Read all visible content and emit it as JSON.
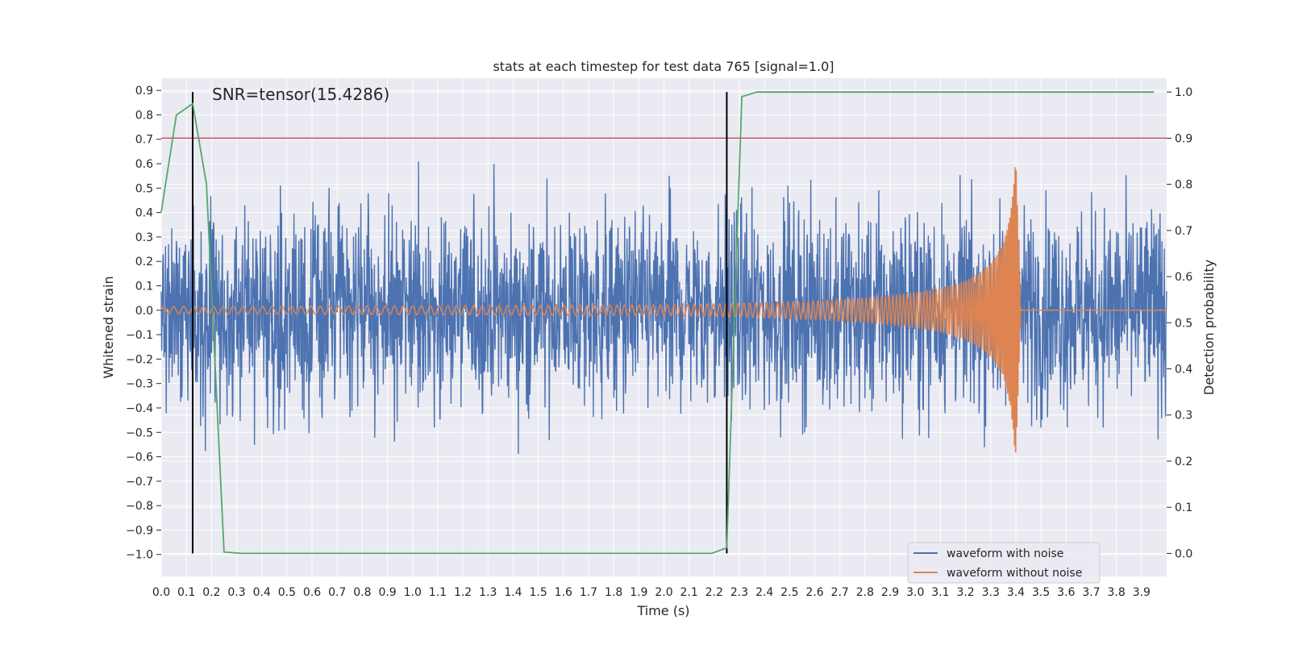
{
  "chart_data": {
    "type": "line",
    "title": "stats at each timestep for test data 765 [signal=1.0]",
    "xlabel": "Time (s)",
    "ylabel": "Whitened strain",
    "y2label": "Detection probability",
    "xlim": [
      0.0,
      4.0
    ],
    "ylim": [
      -1.09,
      0.95
    ],
    "y2lim": [
      -0.05,
      1.03
    ],
    "grid": true,
    "legend_position": "bottom-right",
    "x_ticks": [
      "0.0",
      "0.1",
      "0.2",
      "0.3",
      "0.4",
      "0.5",
      "0.6",
      "0.7",
      "0.8",
      "0.9",
      "1.0",
      "1.1",
      "1.2",
      "1.3",
      "1.4",
      "1.5",
      "1.6",
      "1.7",
      "1.8",
      "1.9",
      "2.0",
      "2.1",
      "2.2",
      "2.3",
      "2.4",
      "2.5",
      "2.6",
      "2.7",
      "2.8",
      "2.9",
      "3.0",
      "3.1",
      "3.2",
      "3.3",
      "3.4",
      "3.5",
      "3.6",
      "3.7",
      "3.8",
      "3.9"
    ],
    "y_ticks": [
      "0.9",
      "0.8",
      "0.7",
      "0.6",
      "0.5",
      "0.4",
      "0.3",
      "0.2",
      "0.1",
      "0.0",
      "−0.1",
      "−0.2",
      "−0.3",
      "−0.4",
      "−0.5",
      "−0.6",
      "−0.7",
      "−0.8",
      "−0.9",
      "−1.0"
    ],
    "y2_ticks": [
      "1.0",
      "0.9",
      "0.8",
      "0.7",
      "0.6",
      "0.5",
      "0.4",
      "0.3",
      "0.2",
      "0.1",
      "0.0"
    ],
    "annotation": "SNR=tensor(15.4286)",
    "series": [
      {
        "name": "waveform with noise",
        "color": "#4c72b0",
        "axis": "left",
        "noise_amplitude": 0.45,
        "y_range": [
          -1.0,
          0.86
        ]
      },
      {
        "name": "waveform without noise",
        "color": "#dd8452",
        "axis": "left",
        "x": [
          0.0,
          0.5,
          1.0,
          1.5,
          2.0,
          2.3,
          2.6,
          2.8,
          3.0,
          3.1,
          3.2,
          3.25,
          3.3,
          3.35,
          3.38,
          3.4,
          3.42,
          4.0
        ],
        "amplitude": [
          0.015,
          0.016,
          0.018,
          0.02,
          0.022,
          0.028,
          0.038,
          0.05,
          0.07,
          0.09,
          0.12,
          0.15,
          0.19,
          0.27,
          0.4,
          0.62,
          0.0,
          0.0
        ],
        "frequency_hz": [
          25,
          26,
          28,
          31,
          36,
          42,
          52,
          62,
          75,
          85,
          100,
          110,
          125,
          150,
          180,
          220,
          220,
          220
        ]
      },
      {
        "name": "detection probability",
        "color": "#55a868",
        "axis": "right",
        "x": [
          0.0,
          0.06,
          0.125,
          0.18,
          0.25,
          0.32,
          2.19,
          2.25,
          2.31,
          2.37,
          3.95
        ],
        "y": [
          0.74,
          0.95,
          0.975,
          0.8,
          0.003,
          0.0,
          0.0,
          0.012,
          0.99,
          1.0,
          1.0
        ]
      }
    ],
    "hlines": [
      {
        "y2": 0.9,
        "color": "#c44e52"
      }
    ],
    "vlines": [
      {
        "x": 0.125,
        "color": "#000000"
      },
      {
        "x": 2.25,
        "color": "#000000"
      }
    ]
  }
}
